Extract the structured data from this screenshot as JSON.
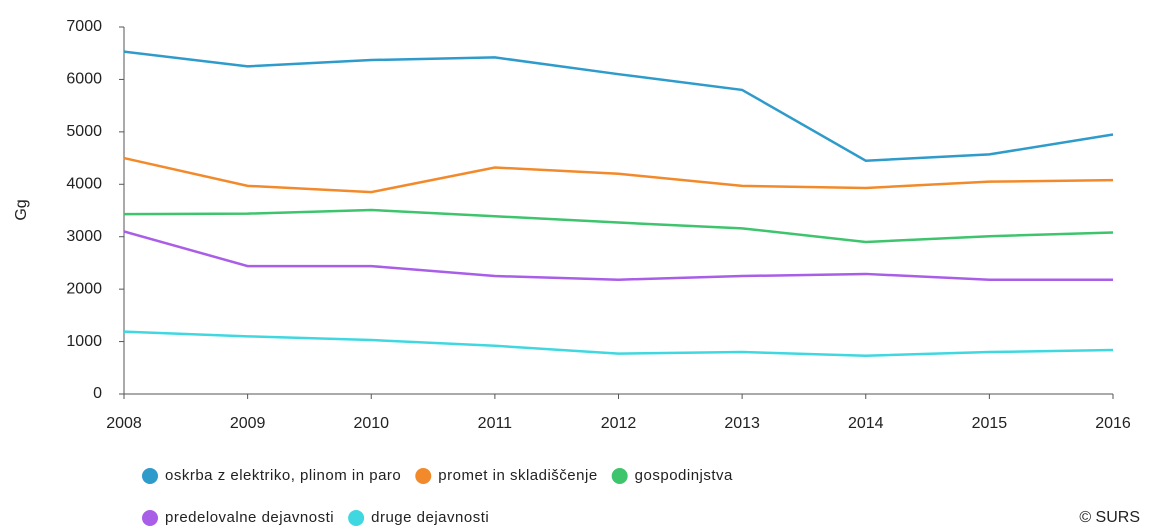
{
  "chart_data": {
    "type": "line",
    "y_label": "Gg",
    "source": "© SURS",
    "x": [
      2008,
      2009,
      2010,
      2011,
      2012,
      2013,
      2014,
      2015,
      2016
    ],
    "xlim": [
      2008,
      2016
    ],
    "xticks": [
      2008,
      2009,
      2010,
      2011,
      2012,
      2013,
      2014,
      2015,
      2016
    ],
    "ylim": [
      0,
      7000
    ],
    "yticks": [
      0,
      1000,
      2000,
      3000,
      4000,
      5000,
      6000,
      7000
    ],
    "series": [
      {
        "name": "oskrba z elektriko, plinom in paro",
        "color": "#2e9bcb",
        "values": [
          6530,
          6250,
          6370,
          6420,
          6100,
          5800,
          4450,
          4570,
          4950
        ]
      },
      {
        "name": "promet in skladiščenje",
        "color": "#f28a2b",
        "values": [
          4500,
          3970,
          3850,
          4320,
          4200,
          3970,
          3930,
          4050,
          4080
        ]
      },
      {
        "name": "gospodinjstva",
        "color": "#3ec46d",
        "values": [
          3430,
          3440,
          3510,
          3390,
          3270,
          3160,
          2900,
          3010,
          3080
        ]
      },
      {
        "name": "predelovalne dejavnosti",
        "color": "#a95ee8",
        "values": [
          3100,
          2440,
          2440,
          2250,
          2180,
          2250,
          2290,
          2180,
          2180
        ]
      },
      {
        "name": "druge dejavnosti",
        "color": "#40d8e0",
        "values": [
          1190,
          1100,
          1030,
          920,
          770,
          800,
          730,
          800,
          840
        ]
      }
    ]
  }
}
